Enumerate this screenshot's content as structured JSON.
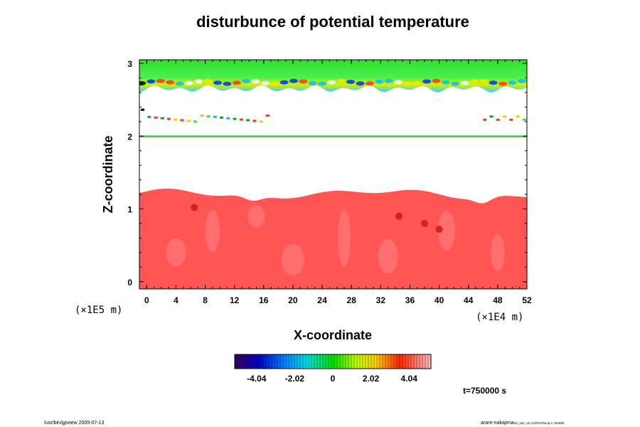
{
  "chart_data": {
    "type": "heatmap",
    "title": "disturbunce of potential temperature",
    "xlabel": "X-coordinate",
    "ylabel": "Z-coordinate",
    "x_unit": "(×1E4 m)",
    "y_unit": "(×1E5 m)",
    "xlim": [
      -1,
      52
    ],
    "ylim": [
      -0.1,
      3.05
    ],
    "x_ticks": [
      0,
      4,
      8,
      12,
      16,
      20,
      24,
      28,
      32,
      36,
      40,
      44,
      48,
      52
    ],
    "y_ticks": [
      0,
      1,
      2,
      3
    ],
    "colorbar": {
      "range": [
        -5.2,
        5.2
      ],
      "ticks": [
        -4.04,
        -2.02,
        0,
        2.02,
        4.04
      ],
      "tick_labels": [
        "-4.04",
        "-2.02",
        "0",
        "2.02",
        "4.04"
      ]
    },
    "regions": [
      {
        "name": "lower warm layer",
        "z_range": [
          0,
          1.2
        ],
        "value": 4.3
      },
      {
        "name": "thin band",
        "z": 2.0
      },
      {
        "name": "scattered patches",
        "z_range": [
          2.18,
          2.3
        ]
      },
      {
        "name": "upper layer",
        "z_range": [
          2.65,
          3.05
        ],
        "value": 0.8
      }
    ],
    "time_label": "t=750000 s"
  },
  "footer": {
    "left": "/usr/bin/gpview 2005-07-13",
    "right_main": "arare-nakajima",
    "right_sub": "03_1e5_v1.nc@PotTemp,t=750000"
  }
}
